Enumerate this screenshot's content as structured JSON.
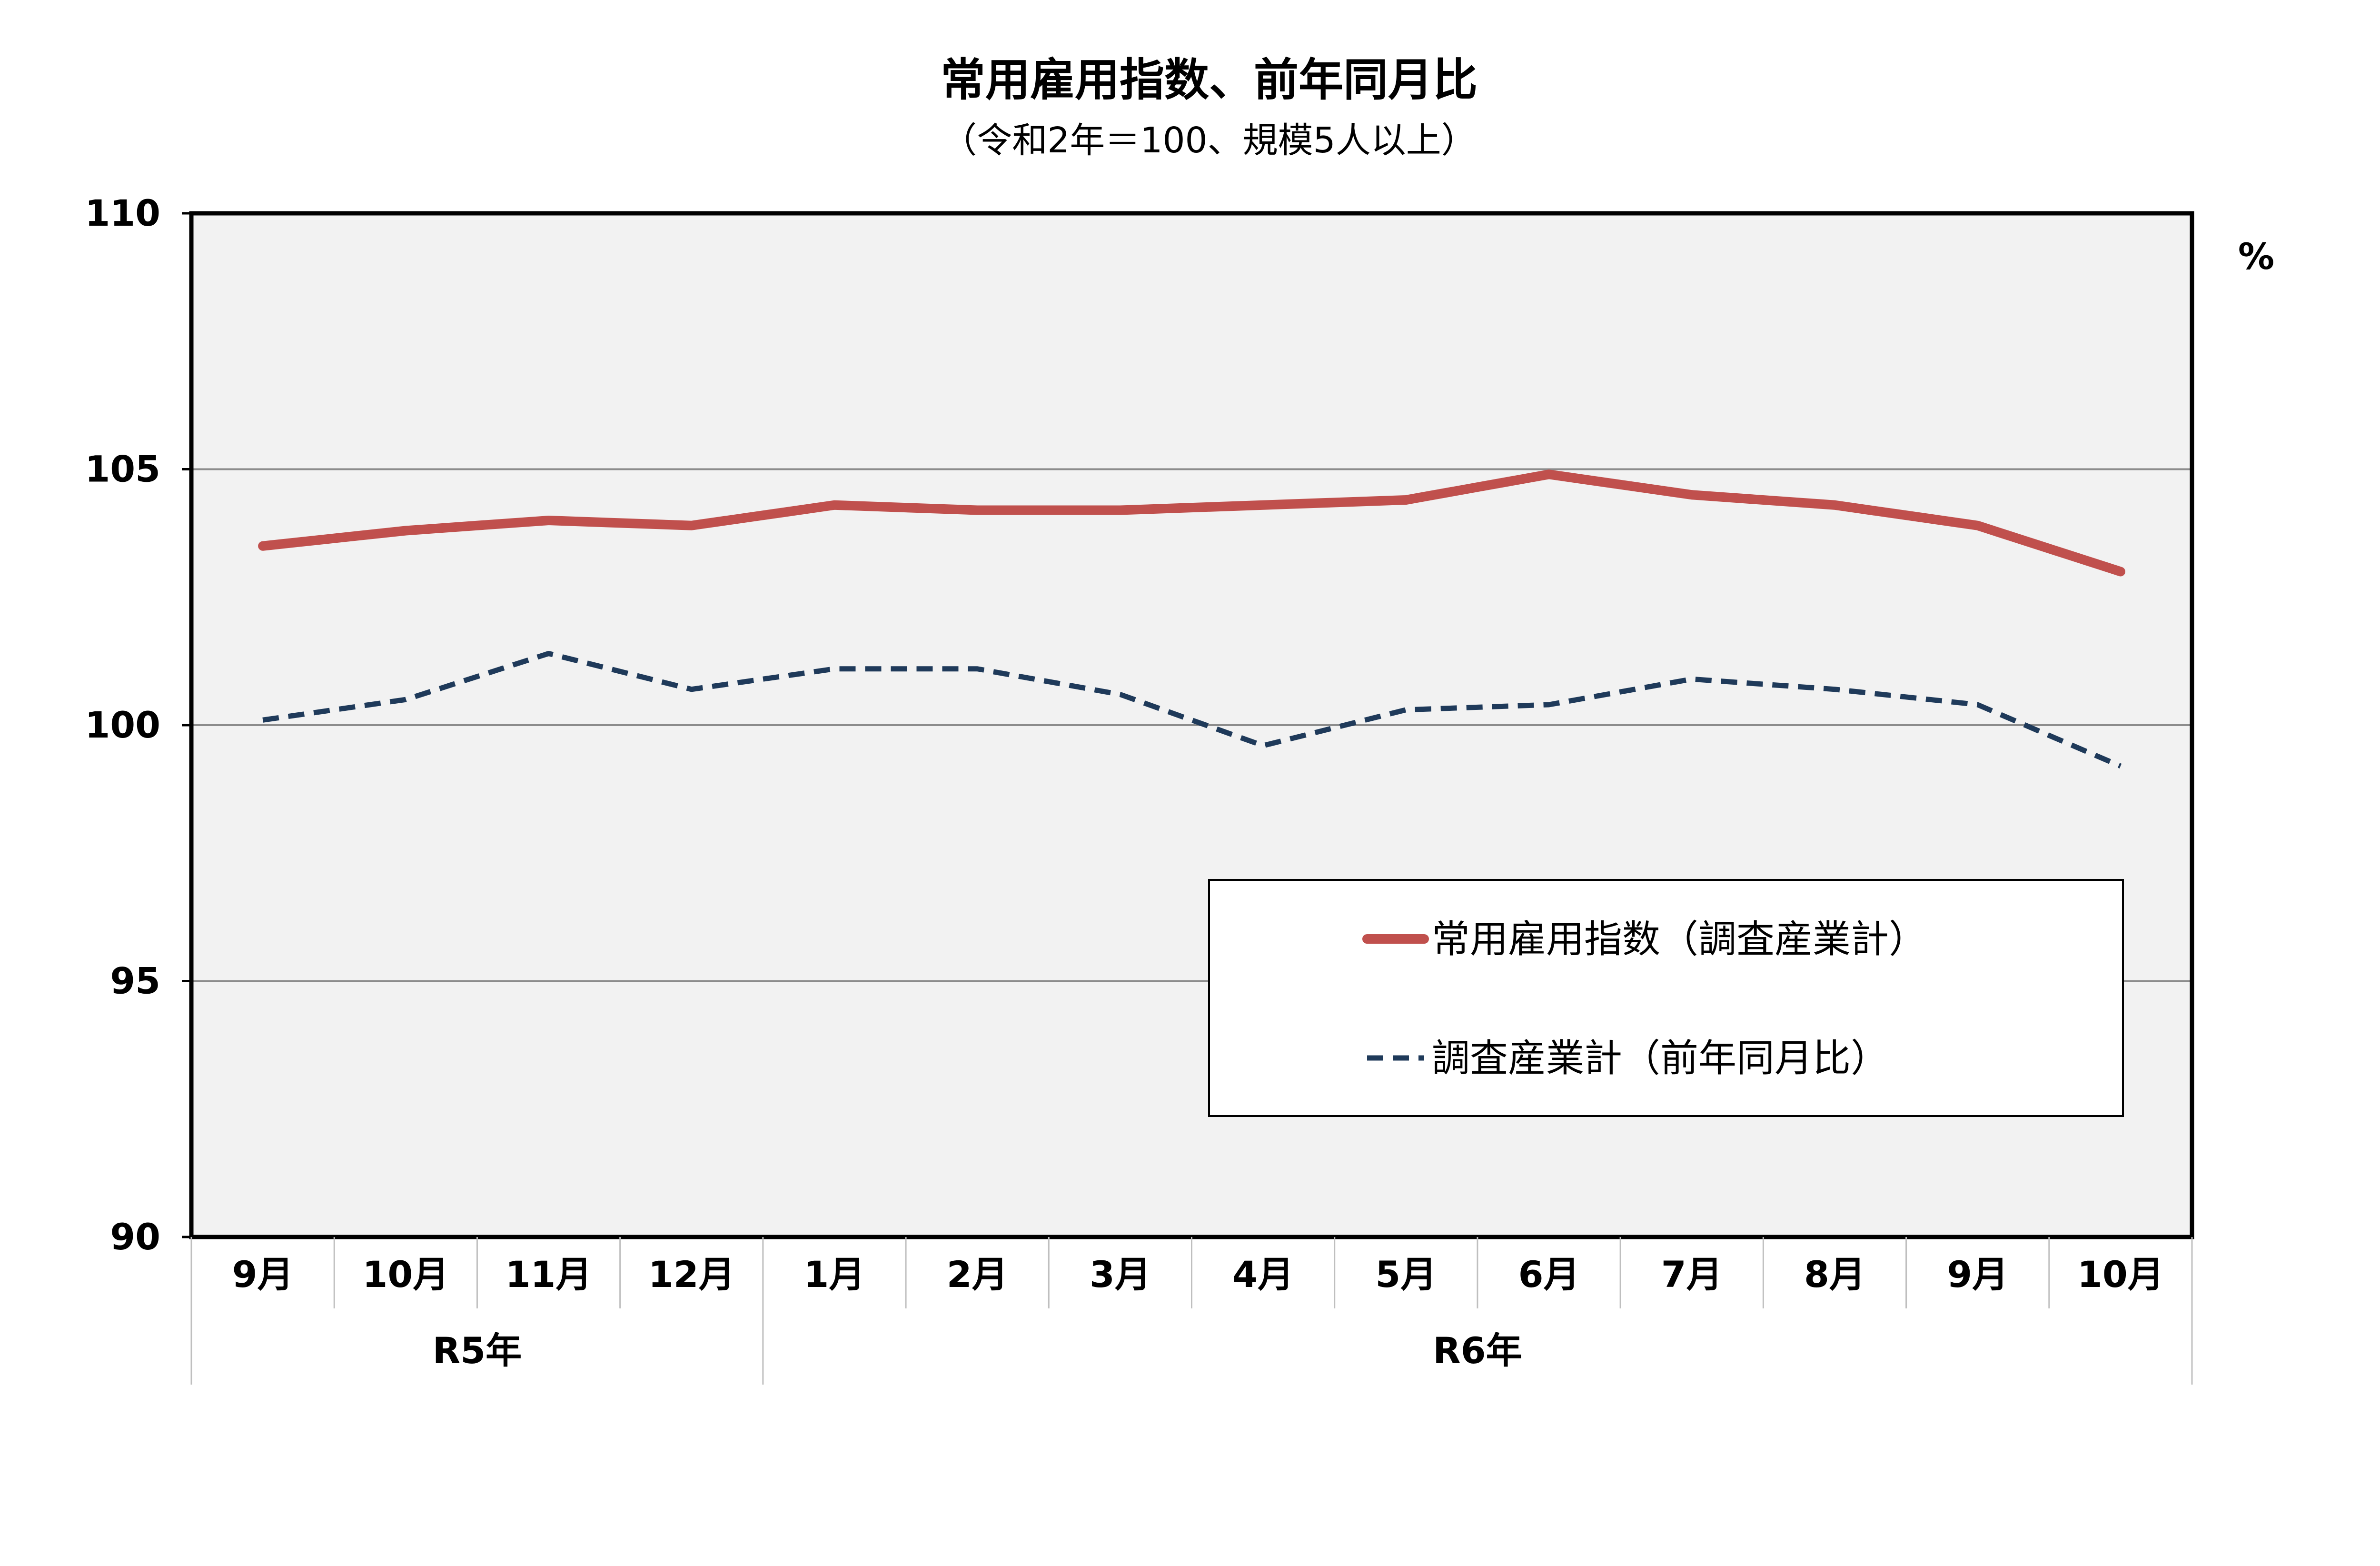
{
  "chart_data": {
    "type": "line",
    "title": "常用雇用指数、前年同月比",
    "subtitle": "（令和2年＝100、規模5人以上）",
    "unit_label_right": "%",
    "categories": [
      "9月",
      "10月",
      "11月",
      "12月",
      "1月",
      "2月",
      "3月",
      "4月",
      "5月",
      "6月",
      "7月",
      "8月",
      "9月",
      "10月"
    ],
    "year_groups": [
      {
        "label": "R5年",
        "start": 0,
        "count": 4
      },
      {
        "label": "R6年",
        "start": 4,
        "count": 10
      }
    ],
    "ylim": [
      90,
      110
    ],
    "yticks": [
      90,
      95,
      100,
      105,
      110
    ],
    "grid": true,
    "legend_position": "lower-right",
    "series": [
      {
        "name": "常用雇用指数（調査産業計）",
        "color": "#c0504d",
        "style": "solid",
        "values": [
          103.5,
          103.8,
          104.0,
          103.9,
          104.3,
          104.2,
          104.2,
          104.3,
          104.4,
          104.9,
          104.5,
          104.3,
          103.9,
          103.0
        ]
      },
      {
        "name": "調査産業計（前年同月比）",
        "color": "#1f3a5a",
        "style": "dashed",
        "values": [
          100.1,
          100.5,
          101.4,
          100.7,
          101.1,
          101.1,
          100.6,
          99.6,
          100.3,
          100.4,
          100.9,
          100.7,
          100.4,
          99.2
        ]
      }
    ]
  }
}
